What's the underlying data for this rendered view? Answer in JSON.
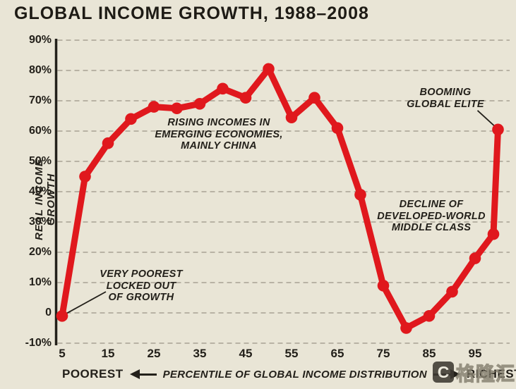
{
  "title": "GLOBAL INCOME GROWTH, 1988–2008",
  "colors": {
    "background": "#e9e5d6",
    "line": "#e0181d",
    "ink": "#23201a",
    "grid": "#a7a294"
  },
  "y_axis": {
    "label": "REAL INCOME GROWTH",
    "ticks": [
      "90%",
      "80%",
      "70%",
      "60%",
      "50%",
      "40%",
      "30%",
      "20%",
      "10%",
      "0",
      "-10%"
    ]
  },
  "x_axis": {
    "ticks": [
      "5",
      "15",
      "25",
      "35",
      "45",
      "55",
      "65",
      "75",
      "85",
      "95"
    ]
  },
  "annotations": {
    "rising": [
      "RISING INCOMES IN",
      "EMERGING ECONOMIES,",
      "MAINLY CHINA"
    ],
    "poorest": [
      "VERY POOREST",
      "LOCKED OUT",
      "OF GROWTH"
    ],
    "decline": [
      "DECLINE OF",
      "DEVELOPED-WORLD",
      "MIDDLE CLASS"
    ],
    "booming": [
      "BOOMING",
      "GLOBAL ELITE"
    ]
  },
  "footer": {
    "left": "POOREST",
    "center": "PERCENTILE OF GLOBAL INCOME DISTRIBUTION",
    "right": "RICHEST"
  },
  "watermark": {
    "logo_text": "C",
    "brand": "格隆汇"
  },
  "chart_data": {
    "type": "line",
    "title": "GLOBAL INCOME GROWTH, 1988–2008",
    "xlabel": "PERCENTILE OF GLOBAL INCOME DISTRIBUTION",
    "ylabel": "REAL INCOME GROWTH",
    "x": [
      5,
      10,
      15,
      20,
      25,
      30,
      35,
      40,
      45,
      50,
      55,
      60,
      65,
      70,
      75,
      80,
      85,
      90,
      95,
      99,
      100
    ],
    "values": [
      -1,
      45,
      56,
      64,
      68,
      67.5,
      69,
      74,
      71,
      80.5,
      64.5,
      71,
      61,
      39,
      9,
      -5,
      -1,
      7,
      18,
      26,
      60.5
    ],
    "xlim": [
      3,
      102
    ],
    "ylim": [
      -10,
      90
    ],
    "y_tick_values": [
      90,
      80,
      70,
      60,
      50,
      40,
      30,
      20,
      10,
      0,
      -10
    ],
    "x_tick_values": [
      5,
      15,
      25,
      35,
      45,
      55,
      65,
      75,
      85,
      95
    ],
    "grid": true,
    "grid_style": "dashed",
    "legend_position": "none",
    "marker": "circle",
    "series_color": "#e0181d"
  }
}
